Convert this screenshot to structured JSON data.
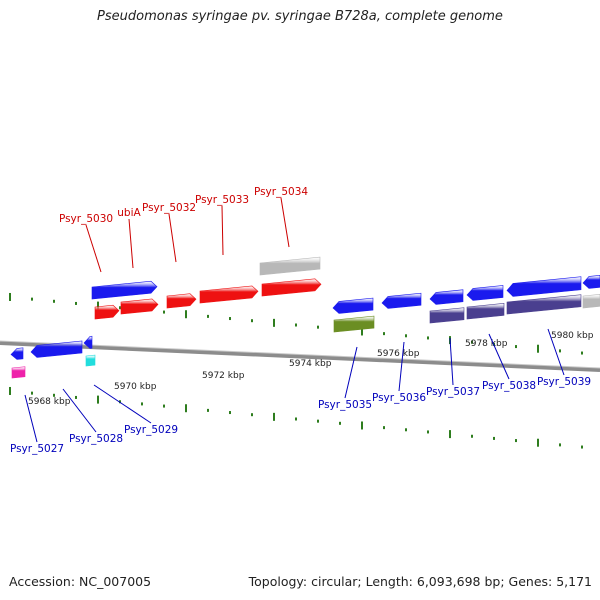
{
  "title": "Pseudomonas syringae pv. syringae B728a, complete genome",
  "footer": {
    "accession": "Accession: NC_007005",
    "topology": "Topology: circular; Length: 6,093,698 bp; Genes: 5,171"
  },
  "colors": {
    "backbone": "#8c8c8c",
    "tick": "#2e7d1e",
    "red_label": "#cc0000",
    "blue_label": "#0000bb",
    "gene_blue": "#1a1aee",
    "gene_red": "#ee1111",
    "gene_gray": "#b8b8b8",
    "gene_purple": "#4a3f8f",
    "gene_olive": "#6b8e23",
    "gene_cyan": "#22dddd",
    "gene_magenta": "#ee22aa"
  },
  "scale_labels": [
    "5968 kbp",
    "5970 kbp",
    "5972 kbp",
    "5974 kbp",
    "5976 kbp",
    "5978 kbp",
    "5980 kbp"
  ],
  "forward_genes": [
    {
      "label": "Psyr_5030",
      "color": "gene_red"
    },
    {
      "label": "ubiA",
      "color": "gene_red"
    },
    {
      "label": "Psyr_5032",
      "color": "gene_red"
    },
    {
      "label": "Psyr_5033",
      "color": "gene_red"
    },
    {
      "label": "Psyr_5034",
      "color": "gene_gray"
    }
  ],
  "reverse_genes": [
    {
      "label": "Psyr_5027",
      "color": "gene_magenta"
    },
    {
      "label": "Psyr_5028",
      "color": "gene_blue"
    },
    {
      "label": "Psyr_5029",
      "color": "gene_cyan"
    },
    {
      "label": "Psyr_5035",
      "color": "gene_olive"
    },
    {
      "label": "Psyr_5036",
      "color": "gene_blue"
    },
    {
      "label": "Psyr_5037",
      "color": "gene_purple"
    },
    {
      "label": "Psyr_5038",
      "color": "gene_purple"
    },
    {
      "label": "Psyr_5039",
      "color": "gene_purple"
    }
  ]
}
